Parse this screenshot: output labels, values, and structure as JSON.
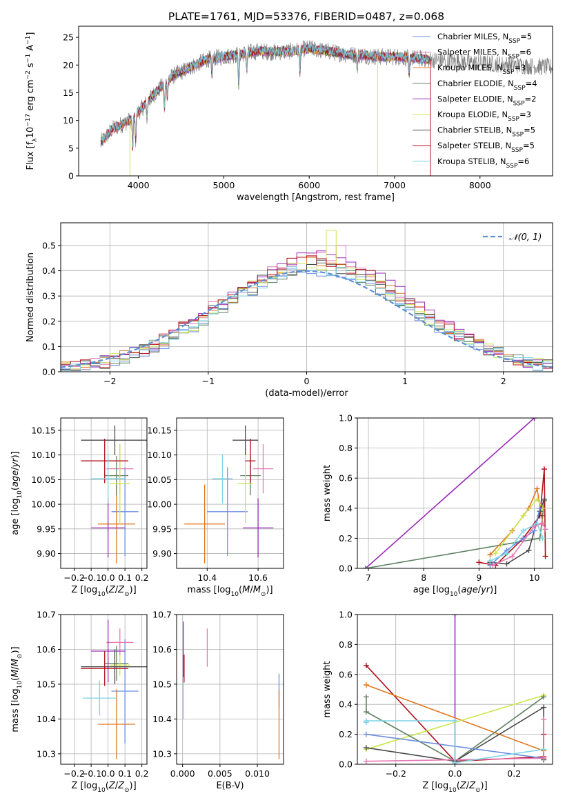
{
  "title": "PLATE=1761, MJD=53376, FIBERID=0487, z=0.068",
  "colors": {
    "Chabrier MILES": "#6a8ee0",
    "Salpeter MILES": "#e877b3",
    "Kroupa MILES": "#e07820",
    "Chabrier ELODIE": "#5e8060",
    "Salpeter ELODIE": "#9a2ab8",
    "Kroupa ELODIE": "#cce64c",
    "Chabrier STELIB": "#4a4a4a",
    "Salpeter STELIB": "#b00f1a",
    "Kroupa STELIB": "#7dd4e6",
    "normal": "#5b8fd6"
  },
  "models": [
    "Chabrier MILES",
    "Salpeter MILES",
    "Kroupa MILES",
    "Chabrier ELODIE",
    "Salpeter ELODIE",
    "Kroupa ELODIE",
    "Chabrier STELIB",
    "Salpeter STELIB",
    "Kroupa STELIB"
  ],
  "chart_data": [
    {
      "id": "spectrum",
      "type": "line",
      "xlabel": "wavelength [Angstrom, rest frame]",
      "ylabel": "Flux [f_λ 10^-17 erg cm^-2 s^-1 A^-1]",
      "xlim": [
        3300,
        8850
      ],
      "ylim": [
        0,
        27
      ],
      "xticks": [
        4000,
        5000,
        6000,
        7000,
        8000
      ],
      "yticks": [
        0,
        5,
        10,
        15,
        20,
        25
      ],
      "grid": false,
      "legend_position": "right",
      "legend": [
        {
          "label": "Chabrier MILES, N",
          "sub": "SSP",
          "n": "=5",
          "model": "Chabrier MILES"
        },
        {
          "label": "Salpeter MILES, N",
          "sub": "SSP",
          "n": "=6",
          "model": "Salpeter MILES"
        },
        {
          "label": "Kroupa MILES, N",
          "sub": "SSP",
          "n": "=3",
          "model": "Kroupa MILES"
        },
        {
          "label": "Chabrier ELODIE, N",
          "sub": "SSP",
          "n": "=4",
          "model": "Chabrier ELODIE"
        },
        {
          "label": "Salpeter ELODIE, N",
          "sub": "SSP",
          "n": "=2",
          "model": "Salpeter ELODIE"
        },
        {
          "label": "Kroupa ELODIE, N",
          "sub": "SSP",
          "n": "=3",
          "model": "Kroupa ELODIE"
        },
        {
          "label": "Chabrier STELIB, N",
          "sub": "SSP",
          "n": "=5",
          "model": "Chabrier STELIB"
        },
        {
          "label": "Salpeter STELIB, N",
          "sub": "SSP",
          "n": "=5",
          "model": "Salpeter STELIB"
        },
        {
          "label": "Kroupa STELIB, N",
          "sub": "SSP",
          "n": "=6",
          "model": "Kroupa STELIB"
        }
      ],
      "continuum": {
        "x": [
          3560,
          3700,
          3900,
          4000,
          4200,
          4400,
          4600,
          4800,
          5000,
          5200,
          5400,
          5600,
          5800,
          6000,
          6200,
          6400,
          6600,
          6800,
          7000,
          7200,
          7400,
          7600,
          7800,
          8000,
          8200,
          8400,
          8600,
          8800
        ],
        "y": [
          6.0,
          8.5,
          10.0,
          11.5,
          15.0,
          18.0,
          19.5,
          21.0,
          21.5,
          22.0,
          22.5,
          22.3,
          22.5,
          23.0,
          22.5,
          22.0,
          21.8,
          21.5,
          21.5,
          21.3,
          21.0,
          20.8,
          20.6,
          20.3,
          20.2,
          20.0,
          19.8,
          19.6
        ]
      },
      "data_range": [
        3560,
        8850
      ],
      "model_range": [
        3560,
        7420
      ],
      "absorption_lines": [
        {
          "x": 3933,
          "depth": 5.5
        },
        {
          "x": 3968,
          "depth": 4.5
        },
        {
          "x": 4101,
          "depth": 3.0
        },
        {
          "x": 4305,
          "depth": 4.5
        },
        {
          "x": 4340,
          "depth": 3.0
        },
        {
          "x": 4861,
          "depth": 3.0
        },
        {
          "x": 5175,
          "depth": 6.0
        },
        {
          "x": 5270,
          "depth": 3.0
        },
        {
          "x": 5892,
          "depth": 4.0
        },
        {
          "x": 6563,
          "depth": 2.5
        },
        {
          "x": 7170,
          "depth": 3.0
        },
        {
          "x": 7600,
          "depth": 2.0
        }
      ],
      "model_spikes": [
        {
          "x": 3900,
          "model": "Kroupa ELODIE",
          "y": 0
        },
        {
          "x": 6800,
          "model": "Kroupa ELODIE",
          "y": 0
        },
        {
          "x": 7420,
          "model": "Salpeter STELIB",
          "y": 0
        }
      ]
    },
    {
      "id": "residuals",
      "type": "line",
      "xlabel": "(data-model)/error",
      "ylabel": "Normed distribution",
      "xlim": [
        -2.5,
        2.5
      ],
      "ylim": [
        0,
        0.59
      ],
      "xticks": [
        -2,
        -1,
        0,
        1,
        2
      ],
      "yticks": [
        0.0,
        0.1,
        0.2,
        0.3,
        0.4,
        0.5
      ],
      "grid": true,
      "legend_position": "upper right",
      "legend": [
        {
          "label": "𝒩(0, 1)",
          "model": "normal"
        }
      ],
      "bin_width": 0.1,
      "bin_start": -2.5,
      "histogram_peak": {
        "Chabrier MILES": 0.4,
        "Salpeter MILES": 0.45,
        "Kroupa MILES": 0.43,
        "Chabrier ELODIE": 0.41,
        "Salpeter ELODIE": 0.46,
        "Kroupa ELODIE": 0.42,
        "Chabrier STELIB": 0.42,
        "Salpeter STELIB": 0.44,
        "Kroupa STELIB": 0.41
      },
      "outlier_bins": [
        {
          "model": "Kroupa ELODIE",
          "x": 0.25,
          "y": 0.56
        },
        {
          "model": "Salpeter MILES",
          "x": 0.35,
          "y": 0.5
        },
        {
          "model": "Salpeter ELODIE",
          "x": 0.05,
          "y": 0.47
        }
      ]
    },
    {
      "id": "age-Z",
      "type": "scatter",
      "xlabel": "Z [log10(Z/Z⊙)]",
      "ylabel": "age  [log10(age/yr)]",
      "xlim": [
        -0.28,
        0.23
      ],
      "ylim": [
        9.87,
        10.175
      ],
      "xticks": [
        -0.2,
        -0.1,
        0.0,
        0.1,
        0.2
      ],
      "yticks": [
        9.9,
        9.95,
        10.0,
        10.05,
        10.1,
        10.15
      ],
      "grid": true,
      "points": [
        {
          "model": "Chabrier MILES",
          "x": 0.1,
          "y": 9.985,
          "xerr": 0.08,
          "yerr": 0.09
        },
        {
          "model": "Salpeter MILES",
          "x": 0.07,
          "y": 10.072,
          "xerr": 0.08,
          "yerr": 0.05
        },
        {
          "model": "Kroupa MILES",
          "x": 0.05,
          "y": 9.96,
          "xerr": 0.11,
          "yerr": 0.08
        },
        {
          "model": "Chabrier ELODIE",
          "x": 0.05,
          "y": 10.058,
          "xerr": 0.07,
          "yerr": 0.04
        },
        {
          "model": "Salpeter ELODIE",
          "x": 0.0,
          "y": 9.952,
          "xerr": 0.1,
          "yerr": 0.06
        },
        {
          "model": "Kroupa ELODIE",
          "x": 0.07,
          "y": 10.042,
          "xerr": 0.06,
          "yerr": 0.08
        },
        {
          "model": "Chabrier STELIB",
          "x": 0.04,
          "y": 10.13,
          "xerr": 0.2,
          "yerr": 0.03
        },
        {
          "model": "Salpeter STELIB",
          "x": -0.02,
          "y": 10.088,
          "xerr": 0.14,
          "yerr": 0.045
        },
        {
          "model": "Kroupa STELIB",
          "x": 0.0,
          "y": 10.052,
          "xerr": 0.1,
          "yerr": 0.05
        }
      ]
    },
    {
      "id": "age-mass",
      "type": "scatter",
      "xlabel": "mass [log10(M/M⊙)]",
      "ylabel": "",
      "xlim": [
        10.28,
        10.7
      ],
      "ylim": [
        9.87,
        10.175
      ],
      "xticks": [
        10.4,
        10.6
      ],
      "yticks": [
        9.9,
        9.95,
        10.0,
        10.05,
        10.1,
        10.15
      ],
      "grid": true,
      "points": [
        {
          "model": "Chabrier MILES",
          "x": 10.48,
          "y": 9.985,
          "xerr": 0.08,
          "yerr": 0.09
        },
        {
          "model": "Salpeter MILES",
          "x": 10.62,
          "y": 10.072,
          "xerr": 0.04,
          "yerr": 0.05
        },
        {
          "model": "Kroupa MILES",
          "x": 10.39,
          "y": 9.96,
          "xerr": 0.08,
          "yerr": 0.08
        },
        {
          "model": "Chabrier ELODIE",
          "x": 10.57,
          "y": 10.058,
          "xerr": 0.04,
          "yerr": 0.04
        },
        {
          "model": "Salpeter ELODIE",
          "x": 10.6,
          "y": 9.952,
          "xerr": 0.06,
          "yerr": 0.06
        },
        {
          "model": "Kroupa ELODIE",
          "x": 10.55,
          "y": 10.042,
          "xerr": 0.03,
          "yerr": 0.08
        },
        {
          "model": "Chabrier STELIB",
          "x": 10.55,
          "y": 10.13,
          "xerr": 0.05,
          "yerr": 0.03
        },
        {
          "model": "Salpeter STELIB",
          "x": 10.57,
          "y": 10.088,
          "xerr": 0.02,
          "yerr": 0.045
        },
        {
          "model": "Kroupa STELIB",
          "x": 10.46,
          "y": 10.052,
          "xerr": 0.04,
          "yerr": 0.05
        }
      ]
    },
    {
      "id": "weight-age",
      "type": "line",
      "xlabel": "age  [log10(age/yr)]",
      "ylabel": "mass weight",
      "xlim": [
        6.8,
        10.33
      ],
      "ylim": [
        0,
        1.0
      ],
      "xticks": [
        7,
        8,
        9,
        10
      ],
      "yticks": [
        0.0,
        0.2,
        0.4,
        0.6,
        0.8,
        1.0
      ],
      "grid": true,
      "series": [
        {
          "model": "Salpeter ELODIE",
          "x": [
            6.95,
            10.0
          ],
          "y": [
            0.0,
            1.0
          ]
        },
        {
          "model": "Chabrier ELODIE",
          "x": [
            6.95,
            10.1,
            10.15,
            10.18
          ],
          "y": [
            0.0,
            0.2,
            0.35,
            0.45
          ]
        },
        {
          "model": "Kroupa MILES",
          "x": [
            9.2,
            9.6,
            9.9,
            10.05,
            10.15
          ],
          "y": [
            0.09,
            0.25,
            0.4,
            0.53,
            0.3
          ]
        },
        {
          "model": "Salpeter STELIB",
          "x": [
            9.0,
            9.3,
            9.8,
            10.1,
            10.18,
            10.2
          ],
          "y": [
            0.04,
            0.02,
            0.2,
            0.35,
            0.66,
            0.08
          ]
        },
        {
          "model": "Kroupa ELODIE",
          "x": [
            9.3,
            9.8,
            10.05,
            10.15
          ],
          "y": [
            0.1,
            0.35,
            0.46,
            0.4
          ]
        },
        {
          "model": "Chabrier STELIB",
          "x": [
            9.2,
            9.5,
            9.9,
            10.1,
            10.18
          ],
          "y": [
            0.04,
            0.03,
            0.12,
            0.38,
            0.46
          ]
        },
        {
          "model": "Chabrier MILES",
          "x": [
            9.2,
            9.5,
            9.8,
            10.0,
            10.1
          ],
          "y": [
            0.02,
            0.12,
            0.2,
            0.25,
            0.4
          ]
        },
        {
          "model": "Salpeter MILES",
          "x": [
            9.25,
            9.6,
            10.0,
            10.15,
            10.2
          ],
          "y": [
            0.02,
            0.08,
            0.28,
            0.3,
            0.26
          ]
        },
        {
          "model": "Kroupa STELIB",
          "x": [
            9.2,
            9.5,
            9.8,
            10.05,
            10.15
          ],
          "y": [
            0.05,
            0.1,
            0.25,
            0.3,
            0.2
          ]
        }
      ]
    },
    {
      "id": "mass-Z",
      "type": "scatter",
      "xlabel": "Z [log10(Z/Z⊙)]",
      "ylabel": "mass [log10(M/M⊙)]",
      "xlim": [
        -0.28,
        0.23
      ],
      "ylim": [
        10.27,
        10.7
      ],
      "xticks": [
        -0.2,
        -0.1,
        0.0,
        0.1,
        0.2
      ],
      "yticks": [
        10.3,
        10.4,
        10.5,
        10.6,
        10.7
      ],
      "grid": true,
      "points": [
        {
          "model": "Chabrier MILES",
          "x": 0.1,
          "y": 10.48,
          "xerr": 0.08,
          "yerr": 0.15
        },
        {
          "model": "Salpeter MILES",
          "x": 0.07,
          "y": 10.62,
          "xerr": 0.08,
          "yerr": 0.04
        },
        {
          "model": "Kroupa MILES",
          "x": 0.05,
          "y": 10.385,
          "xerr": 0.11,
          "yerr": 0.1
        },
        {
          "model": "Chabrier ELODIE",
          "x": 0.05,
          "y": 10.56,
          "xerr": 0.07,
          "yerr": 0.05
        },
        {
          "model": "Salpeter ELODIE",
          "x": 0.0,
          "y": 10.595,
          "xerr": 0.1,
          "yerr": 0.09
        },
        {
          "model": "Kroupa ELODIE",
          "x": 0.07,
          "y": 10.555,
          "xerr": 0.06,
          "yerr": 0.03
        },
        {
          "model": "Chabrier STELIB",
          "x": 0.04,
          "y": 10.55,
          "xerr": 0.2,
          "yerr": 0.05
        },
        {
          "model": "Salpeter STELIB",
          "x": -0.02,
          "y": 10.545,
          "xerr": 0.14,
          "yerr": 0.05
        },
        {
          "model": "Kroupa STELIB",
          "x": -0.05,
          "y": 10.46,
          "xerr": 0.1,
          "yerr": 0.05
        }
      ]
    },
    {
      "id": "mass-ebv",
      "type": "scatter",
      "xlabel": "E(B-V)",
      "ylabel": "",
      "xlim": [
        -0.0008,
        0.0135
      ],
      "ylim": [
        10.27,
        10.7
      ],
      "xticks": [
        0.0,
        0.005,
        0.01
      ],
      "xticklabels": [
        "0.000",
        "0.005",
        "0.010"
      ],
      "yticks": [
        10.3,
        10.4,
        10.5,
        10.6,
        10.7
      ],
      "grid": true,
      "points": [
        {
          "model": "Chabrier MILES",
          "x": 0.0129,
          "y": 10.48,
          "xerr": 0,
          "yerr": 0.05
        },
        {
          "model": "Salpeter MILES",
          "x": 0.0033,
          "y": 10.605,
          "xerr": 0,
          "yerr": 0.055
        },
        {
          "model": "Kroupa MILES",
          "x": 0.0129,
          "y": 10.385,
          "xerr": 0,
          "yerr": 0.1
        },
        {
          "model": "Salpeter ELODIE",
          "x": 0.0001,
          "y": 10.6,
          "xerr": 0,
          "yerr": 0.08
        },
        {
          "model": "Salpeter STELIB",
          "x": 0.0002,
          "y": 10.545,
          "xerr": 0,
          "yerr": 0.04
        },
        {
          "model": "Kroupa STELIB",
          "x": 0.0001,
          "y": 10.46,
          "xerr": 0,
          "yerr": 0.06
        }
      ]
    },
    {
      "id": "weight-Z",
      "type": "line",
      "xlabel": "Z [log10(Z/Z⊙)]",
      "ylabel": "mass weight",
      "xlim": [
        -0.33,
        0.33
      ],
      "ylim": [
        0,
        1.0
      ],
      "xticks": [
        -0.2,
        0.0,
        0.2
      ],
      "yticks": [
        0.0,
        0.2,
        0.4,
        0.6,
        0.8,
        1.0
      ],
      "grid": true,
      "series": [
        {
          "model": "Salpeter ELODIE",
          "x": [
            0.0,
            0.0
          ],
          "y": [
            0.0,
            1.0
          ]
        },
        {
          "model": "Salpeter STELIB",
          "x": [
            -0.3,
            0.0,
            0.3,
            0.3
          ],
          "y": [
            0.66,
            0.02,
            0.05,
            0.2
          ]
        },
        {
          "model": "Kroupa MILES",
          "x": [
            -0.3,
            0.3
          ],
          "y": [
            0.53,
            0.09
          ]
        },
        {
          "model": "Kroupa ELODIE",
          "x": [
            -0.3,
            0.3
          ],
          "y": [
            0.1,
            0.46
          ]
        },
        {
          "model": "Chabrier ELODIE",
          "x": [
            -0.3,
            -0.3,
            0.0,
            0.3
          ],
          "y": [
            0.45,
            0.35,
            0.02,
            0.45
          ]
        },
        {
          "model": "Chabrier STELIB",
          "x": [
            -0.3,
            0.0,
            0.3,
            0.3
          ],
          "y": [
            0.11,
            0.02,
            0.38,
            0.03
          ]
        },
        {
          "model": "Chabrier MILES",
          "x": [
            -0.3,
            0.3
          ],
          "y": [
            0.2,
            0.04
          ]
        },
        {
          "model": "Salpeter MILES",
          "x": [
            -0.3,
            0.3,
            0.3
          ],
          "y": [
            0.02,
            0.04,
            0.3
          ]
        },
        {
          "model": "Kroupa STELIB",
          "x": [
            -0.3,
            -0.3,
            0.0,
            0.0,
            0.3
          ],
          "y": [
            0.28,
            0.29,
            0.29,
            0.01,
            0.1
          ]
        }
      ]
    }
  ]
}
